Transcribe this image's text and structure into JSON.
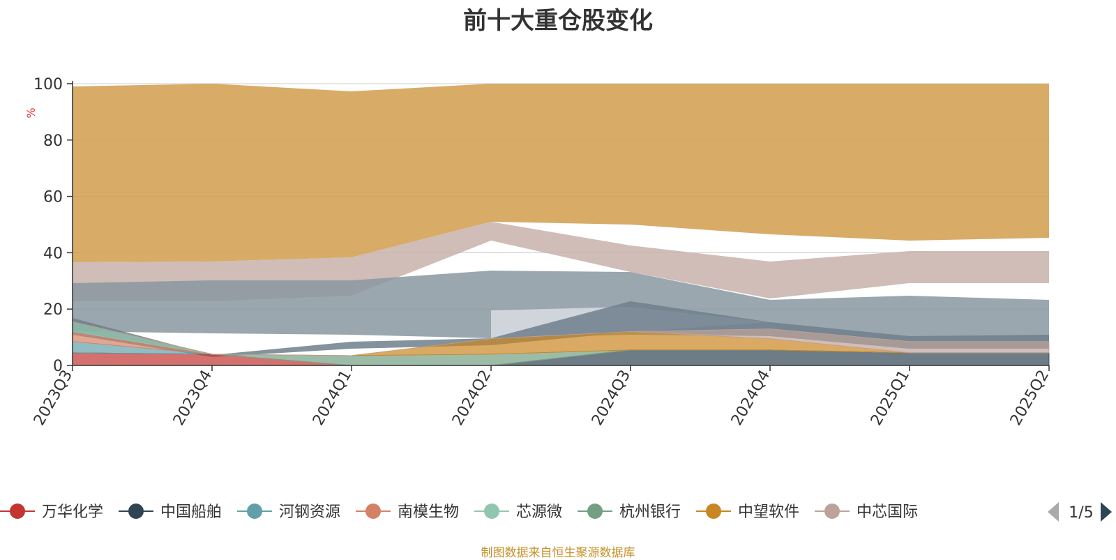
{
  "chart_data": {
    "type": "area",
    "title": "前十大重仓股变化",
    "ylabel": "%",
    "ylim": [
      0,
      100
    ],
    "yticks": [
      0,
      20,
      40,
      60,
      80,
      100
    ],
    "categories": [
      "2023Q3",
      "2023Q4",
      "2024Q1",
      "2024Q2",
      "2024Q3",
      "2024Q4",
      "2025Q1",
      "2025Q2"
    ],
    "grid": true,
    "legend_position": "bottom",
    "legend_page": "1/5",
    "series": [
      {
        "name": "万华化学",
        "color": "#c23531",
        "values": [
          4.5,
          4.0,
          0.0,
          0.0,
          0.0,
          0.0,
          0.0,
          0.0
        ]
      },
      {
        "name": "中国船舶",
        "color": "#2f4554",
        "values": [
          0.0,
          0.0,
          0.0,
          0.0,
          5.5,
          5.5,
          4.5,
          4.5
        ]
      },
      {
        "name": "河钢资源",
        "color": "#61a0a8",
        "values": [
          4.0,
          0.0,
          0.0,
          0.0,
          0.0,
          0.0,
          0.0,
          0.0
        ]
      },
      {
        "name": "南模生物",
        "color": "#d48265",
        "values": [
          3.5,
          0.0,
          0.0,
          0.0,
          0.0,
          0.0,
          0.0,
          0.0
        ]
      },
      {
        "name": "芯源微",
        "color": "#91c7ae",
        "values": [
          3.5,
          0.0,
          0.0,
          0.0,
          0.0,
          0.0,
          0.0,
          0.0
        ]
      },
      {
        "name": "杭州银行",
        "color": "#749f83",
        "values": [
          0.0,
          0.0,
          3.5,
          4.0,
          0.0,
          0.0,
          0.0,
          0.0
        ]
      },
      {
        "name": "中望软件",
        "color": "#ca8622",
        "values": [
          0.0,
          0.0,
          0.0,
          5.5,
          6.5,
          4.0,
          0.0,
          0.0
        ]
      },
      {
        "name": "中芯国际",
        "color": "#bda29a",
        "values": [
          0.0,
          0.0,
          0.0,
          0.0,
          0.0,
          3.5,
          4.0,
          4.0
        ]
      }
    ]
  },
  "source_note": "制图数据来自恒生聚源数据库"
}
